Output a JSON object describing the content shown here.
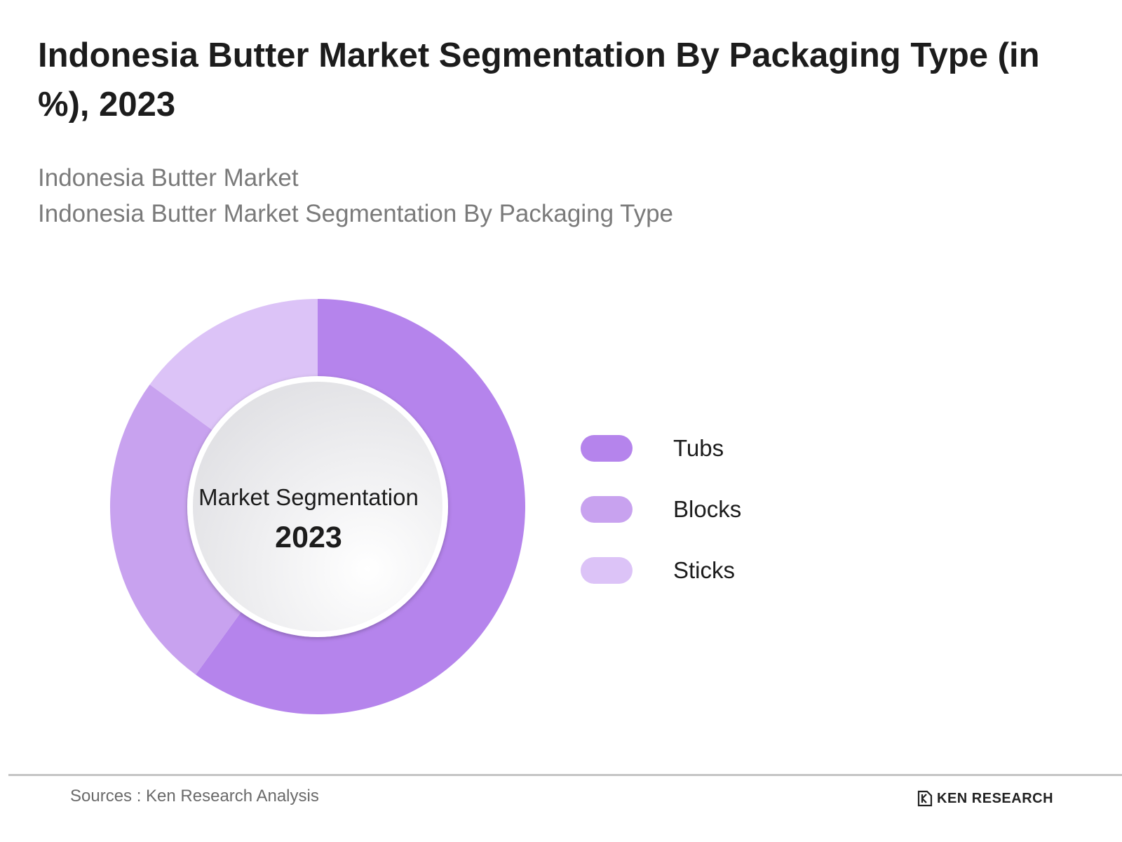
{
  "title": "Indonesia Butter Market Segmentation By Packaging Type  (in %), 2023",
  "subtitles": [
    "Indonesia Butter Market",
    "Indonesia Butter Market Segmentation By Packaging Type"
  ],
  "center": {
    "label": "Market Segmentation",
    "year": "2023"
  },
  "footer": {
    "source": "Sources : Ken Research Analysis",
    "brand": "KEN RESEARCH"
  },
  "chart_data": {
    "type": "pie",
    "variant": "donut",
    "categories": [
      "Tubs",
      "Blocks",
      "Sticks"
    ],
    "values": [
      60,
      25,
      15
    ],
    "colors": [
      "#b584ec",
      "#c8a2ef",
      "#dcc3f7"
    ],
    "legend_position": "right"
  }
}
